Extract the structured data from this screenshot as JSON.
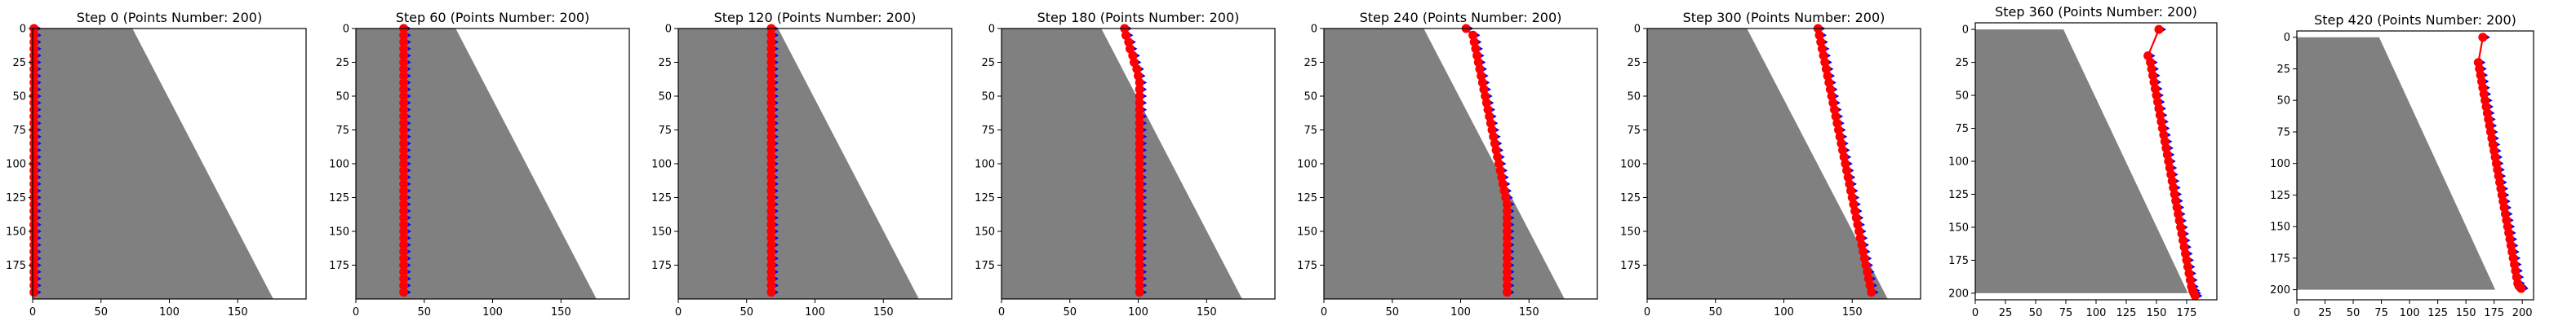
{
  "chart_data": [
    {
      "type": "scatter",
      "title": "Step 0 (Points Number: 200)",
      "xlim": [
        0,
        200
      ],
      "ylim": [
        200,
        0
      ],
      "xticks": [
        0,
        50,
        100,
        150
      ],
      "yticks": [
        0,
        25,
        50,
        75,
        100,
        125,
        150,
        175
      ],
      "x": [
        1,
        1,
        1,
        1,
        1,
        1,
        1,
        1,
        1,
        1,
        1,
        1,
        1,
        1,
        1,
        1,
        1,
        1,
        1,
        1,
        1,
        1,
        1,
        1,
        1,
        1,
        1,
        1,
        1,
        1,
        1,
        1,
        1,
        1,
        1,
        1,
        1,
        1,
        1,
        1
      ],
      "y": [
        0,
        5,
        10,
        15,
        20,
        25,
        30,
        35,
        40,
        45,
        50,
        55,
        60,
        65,
        70,
        75,
        80,
        85,
        90,
        95,
        100,
        105,
        110,
        115,
        120,
        125,
        130,
        135,
        140,
        145,
        150,
        155,
        160,
        165,
        170,
        175,
        180,
        185,
        190,
        195
      ],
      "grid": false,
      "legend": "none"
    },
    {
      "type": "scatter",
      "title": "Step 60 (Points Number: 200)",
      "xlim": [
        0,
        200
      ],
      "ylim": [
        200,
        0
      ],
      "xticks": [
        0,
        50,
        100,
        150
      ],
      "yticks": [
        0,
        25,
        50,
        75,
        100,
        125,
        150,
        175
      ],
      "x": [
        35,
        35,
        35,
        35,
        35,
        35,
        35,
        35,
        35,
        35,
        35,
        35,
        35,
        35,
        35,
        35,
        35,
        35,
        35,
        35,
        35,
        35,
        35,
        35,
        35,
        35,
        35,
        35,
        35,
        35,
        35,
        35,
        35,
        35,
        35,
        35,
        35,
        35,
        35,
        35
      ],
      "y": [
        0,
        5,
        10,
        15,
        20,
        25,
        30,
        35,
        40,
        45,
        50,
        55,
        60,
        65,
        70,
        75,
        80,
        85,
        90,
        95,
        100,
        105,
        110,
        115,
        120,
        125,
        130,
        135,
        140,
        145,
        150,
        155,
        160,
        165,
        170,
        175,
        180,
        185,
        190,
        195
      ],
      "grid": false,
      "legend": "none"
    },
    {
      "type": "scatter",
      "title": "Step 120 (Points Number: 200)",
      "xlim": [
        0,
        200
      ],
      "ylim": [
        200,
        0
      ],
      "xticks": [
        0,
        50,
        100,
        150
      ],
      "yticks": [
        0,
        25,
        50,
        75,
        100,
        125,
        150,
        175
      ],
      "x": [
        68,
        68,
        68,
        68,
        68,
        68,
        68,
        68,
        68,
        68,
        68,
        68,
        68,
        68,
        68,
        68,
        68,
        68,
        68,
        68,
        68,
        68,
        68,
        68,
        68,
        68,
        68,
        68,
        68,
        68,
        68,
        68,
        68,
        68,
        68,
        68,
        68,
        68,
        68,
        68
      ],
      "y": [
        0,
        5,
        10,
        15,
        20,
        25,
        30,
        35,
        40,
        45,
        50,
        55,
        60,
        65,
        70,
        75,
        80,
        85,
        90,
        95,
        100,
        105,
        110,
        115,
        120,
        125,
        130,
        135,
        140,
        145,
        150,
        155,
        160,
        165,
        170,
        175,
        180,
        185,
        190,
        195
      ],
      "grid": false,
      "legend": "none"
    },
    {
      "type": "scatter",
      "title": "Step 180 (Points Number: 200)",
      "xlim": [
        0,
        200
      ],
      "ylim": [
        200,
        0
      ],
      "xticks": [
        0,
        50,
        100,
        150
      ],
      "yticks": [
        0,
        25,
        50,
        75,
        100,
        125,
        150,
        175
      ],
      "x": [
        90,
        91,
        93,
        94,
        96,
        97,
        99,
        100,
        101,
        101,
        101,
        101,
        101,
        101,
        101,
        101,
        101,
        101,
        101,
        101,
        101,
        101,
        101,
        101,
        101,
        101,
        101,
        101,
        101,
        101,
        101,
        101,
        101,
        101,
        101,
        101,
        101,
        101,
        101,
        101
      ],
      "y": [
        0,
        5,
        10,
        15,
        20,
        25,
        30,
        35,
        40,
        45,
        50,
        55,
        60,
        65,
        70,
        75,
        80,
        85,
        90,
        95,
        100,
        105,
        110,
        115,
        120,
        125,
        130,
        135,
        140,
        145,
        150,
        155,
        160,
        165,
        170,
        175,
        180,
        185,
        190,
        195
      ],
      "grid": false,
      "legend": "none"
    },
    {
      "type": "scatter",
      "title": "Step 240 (Points Number: 200)",
      "xlim": [
        0,
        200
      ],
      "ylim": [
        200,
        0
      ],
      "xticks": [
        0,
        50,
        100,
        150
      ],
      "yticks": [
        0,
        25,
        50,
        75,
        100,
        125,
        150,
        175
      ],
      "x": [
        104,
        109,
        110,
        111,
        112,
        113,
        114,
        115,
        116,
        117,
        118,
        119,
        120,
        121,
        122,
        123,
        124,
        125,
        126,
        127,
        128,
        129,
        130,
        131,
        132,
        133,
        134,
        134,
        134,
        134,
        134,
        134,
        134,
        134,
        134,
        134,
        134,
        134,
        134,
        134
      ],
      "y": [
        0,
        5,
        10,
        15,
        20,
        25,
        30,
        35,
        40,
        45,
        50,
        55,
        60,
        65,
        70,
        75,
        80,
        85,
        90,
        95,
        100,
        105,
        110,
        115,
        120,
        125,
        130,
        135,
        140,
        145,
        150,
        155,
        160,
        165,
        170,
        175,
        180,
        185,
        190,
        195
      ],
      "grid": false,
      "legend": "none"
    },
    {
      "type": "scatter",
      "title": "Step 300 (Points Number: 200)",
      "xlim": [
        0,
        200
      ],
      "ylim": [
        200,
        0
      ],
      "xticks": [
        0,
        50,
        100,
        150
      ],
      "yticks": [
        0,
        25,
        50,
        75,
        100,
        125,
        150,
        175
      ],
      "x": [
        125,
        126,
        127,
        128,
        129,
        130,
        131,
        132,
        133,
        134,
        135,
        136,
        137,
        138,
        139,
        140,
        141,
        142,
        143,
        144,
        145,
        146,
        147,
        148,
        149,
        150,
        151,
        152,
        153,
        154,
        155,
        156,
        157,
        158,
        159,
        160,
        161,
        162,
        163,
        164
      ],
      "y": [
        0,
        5,
        10,
        15,
        20,
        25,
        30,
        35,
        40,
        45,
        50,
        55,
        60,
        65,
        70,
        75,
        80,
        85,
        90,
        95,
        100,
        105,
        110,
        115,
        120,
        125,
        130,
        135,
        140,
        145,
        150,
        155,
        160,
        165,
        170,
        175,
        180,
        185,
        190,
        195
      ],
      "grid": false,
      "legend": "none"
    },
    {
      "type": "scatter",
      "title": "Step 360 (Points Number: 200)",
      "xlim": [
        0,
        200
      ],
      "ylim": [
        205,
        -5
      ],
      "xticks": [
        0,
        25,
        50,
        75,
        100,
        125,
        150,
        175
      ],
      "yticks": [
        0,
        25,
        50,
        75,
        100,
        125,
        150,
        175,
        200
      ],
      "x": [
        152,
        143,
        145,
        146,
        147,
        148,
        149,
        150,
        151,
        152,
        153,
        154,
        155,
        156,
        157,
        158,
        159,
        160,
        161,
        162,
        163,
        164,
        165,
        166,
        167,
        168,
        169,
        170,
        171,
        172,
        173,
        174,
        175,
        176,
        177,
        178,
        179,
        180,
        181,
        182
      ],
      "y": [
        0,
        20,
        25,
        30,
        35,
        40,
        45,
        50,
        55,
        60,
        65,
        70,
        75,
        80,
        85,
        90,
        95,
        100,
        105,
        110,
        115,
        120,
        125,
        130,
        135,
        140,
        145,
        150,
        155,
        160,
        165,
        170,
        175,
        180,
        185,
        190,
        195,
        198,
        200,
        202
      ],
      "grid": false,
      "legend": "none"
    },
    {
      "type": "scatter",
      "title": "Step 420 (Points Number: 200)",
      "xlim": [
        0,
        210
      ],
      "ylim": [
        208,
        -5
      ],
      "xticks": [
        0,
        25,
        50,
        75,
        100,
        125,
        150,
        175,
        200
      ],
      "yticks": [
        0,
        25,
        50,
        75,
        100,
        125,
        150,
        175,
        200
      ],
      "x": [
        165,
        161,
        162,
        163,
        164,
        165,
        166,
        167,
        168,
        169,
        170,
        171,
        172,
        173,
        174,
        175,
        176,
        177,
        178,
        179,
        180,
        181,
        182,
        183,
        184,
        185,
        186,
        187,
        188,
        189,
        190,
        191,
        192,
        193,
        194,
        195,
        196,
        197,
        198,
        199
      ],
      "y": [
        0,
        20,
        25,
        30,
        35,
        40,
        45,
        50,
        55,
        60,
        65,
        70,
        75,
        80,
        85,
        90,
        95,
        100,
        105,
        110,
        115,
        120,
        125,
        130,
        135,
        140,
        145,
        150,
        155,
        160,
        165,
        170,
        175,
        180,
        185,
        190,
        195,
        197,
        198,
        199
      ],
      "grid": false,
      "legend": "none"
    }
  ],
  "colors": {
    "obstacle": "#808080",
    "point": "#ff0000",
    "arrow": "#0000ff",
    "axis": "#000000"
  }
}
